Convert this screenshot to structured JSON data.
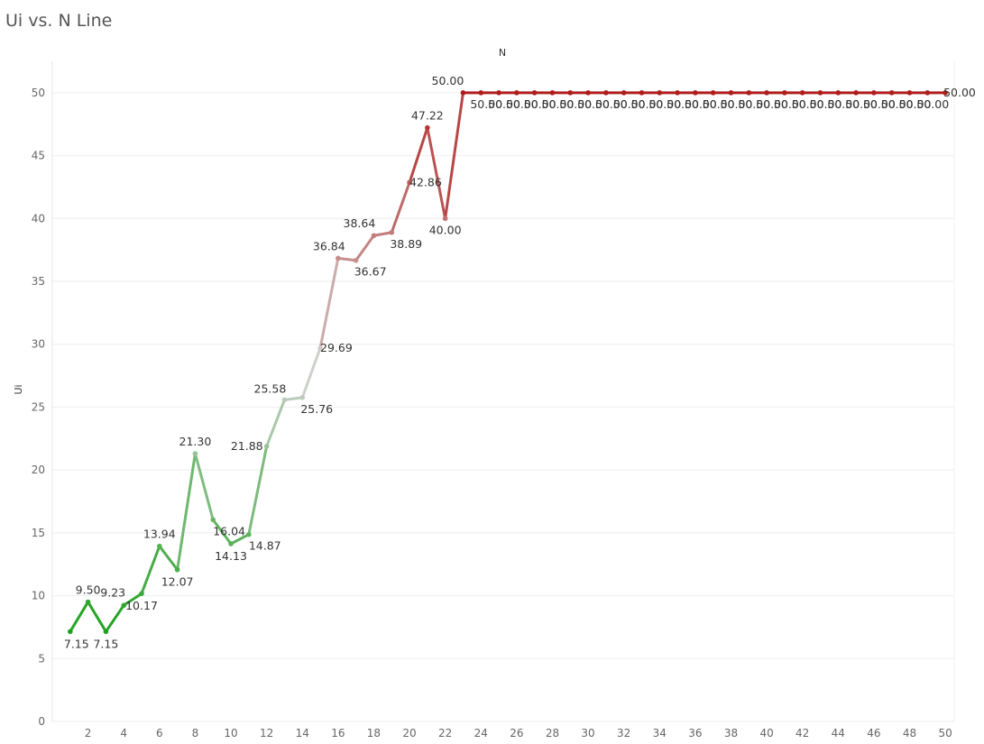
{
  "title": "Ui vs. N Line",
  "chart_data": {
    "type": "line",
    "title": "Ui vs. N Line",
    "xlabel": "N",
    "ylabel": "Ui",
    "x": [
      1,
      2,
      3,
      4,
      5,
      6,
      7,
      8,
      9,
      10,
      11,
      12,
      13,
      14,
      15,
      16,
      17,
      18,
      19,
      20,
      21,
      22,
      23,
      24,
      25,
      26,
      27,
      28,
      29,
      30,
      31,
      32,
      33,
      34,
      35,
      36,
      37,
      38,
      39,
      40,
      41,
      42,
      43,
      44,
      45,
      46,
      47,
      48,
      49,
      50
    ],
    "y": [
      7.15,
      9.5,
      7.15,
      9.23,
      10.17,
      13.94,
      12.07,
      21.3,
      16.04,
      14.13,
      14.87,
      21.88,
      25.58,
      25.76,
      29.69,
      36.84,
      36.67,
      38.64,
      38.89,
      42.86,
      47.22,
      40.0,
      50.0,
      50.0,
      50.0,
      50.0,
      50.0,
      50.0,
      50.0,
      50.0,
      50.0,
      50.0,
      50.0,
      50.0,
      50.0,
      50.0,
      50.0,
      50.0,
      50.0,
      50.0,
      50.0,
      50.0,
      50.0,
      50.0,
      50.0,
      50.0,
      50.0,
      50.0,
      50.0,
      50.0
    ],
    "labels": [
      "7.15",
      "9.50",
      "7.15",
      "9.23",
      "10.17",
      "13.94",
      "12.07",
      "21.30",
      "16.04",
      "14.13",
      "14.87",
      "21.88",
      "25.58",
      "25.76",
      "29.69",
      "36.84",
      "36.67",
      "38.64",
      "38.89",
      "42.86",
      "47.22",
      "40.00",
      "50.00",
      "50.00",
      "50.00",
      "50.00",
      "50.00",
      "50.00",
      "50.00",
      "50.00",
      "50.00",
      "50.00",
      "50.00",
      "50.00",
      "50.00",
      "50.00",
      "50.00",
      "50.00",
      "50.00",
      "50.00",
      "50.00",
      "50.00",
      "50.00",
      "50.00",
      "50.00",
      "50.00",
      "50.00",
      "50.00",
      "50.00",
      "50.00"
    ],
    "xticks": [
      2,
      4,
      6,
      8,
      10,
      12,
      14,
      16,
      18,
      20,
      22,
      24,
      26,
      28,
      30,
      32,
      34,
      36,
      38,
      40,
      42,
      44,
      46,
      48,
      50
    ],
    "yticks": [
      0,
      5,
      10,
      15,
      20,
      25,
      30,
      35,
      40,
      45,
      50
    ],
    "xlim": [
      0,
      50.5
    ],
    "ylim": [
      0,
      52.5
    ],
    "grid": true,
    "color_scale": {
      "low": "#1ea11e",
      "mid": "#d3d3d3",
      "high": "#b01c1c"
    }
  }
}
